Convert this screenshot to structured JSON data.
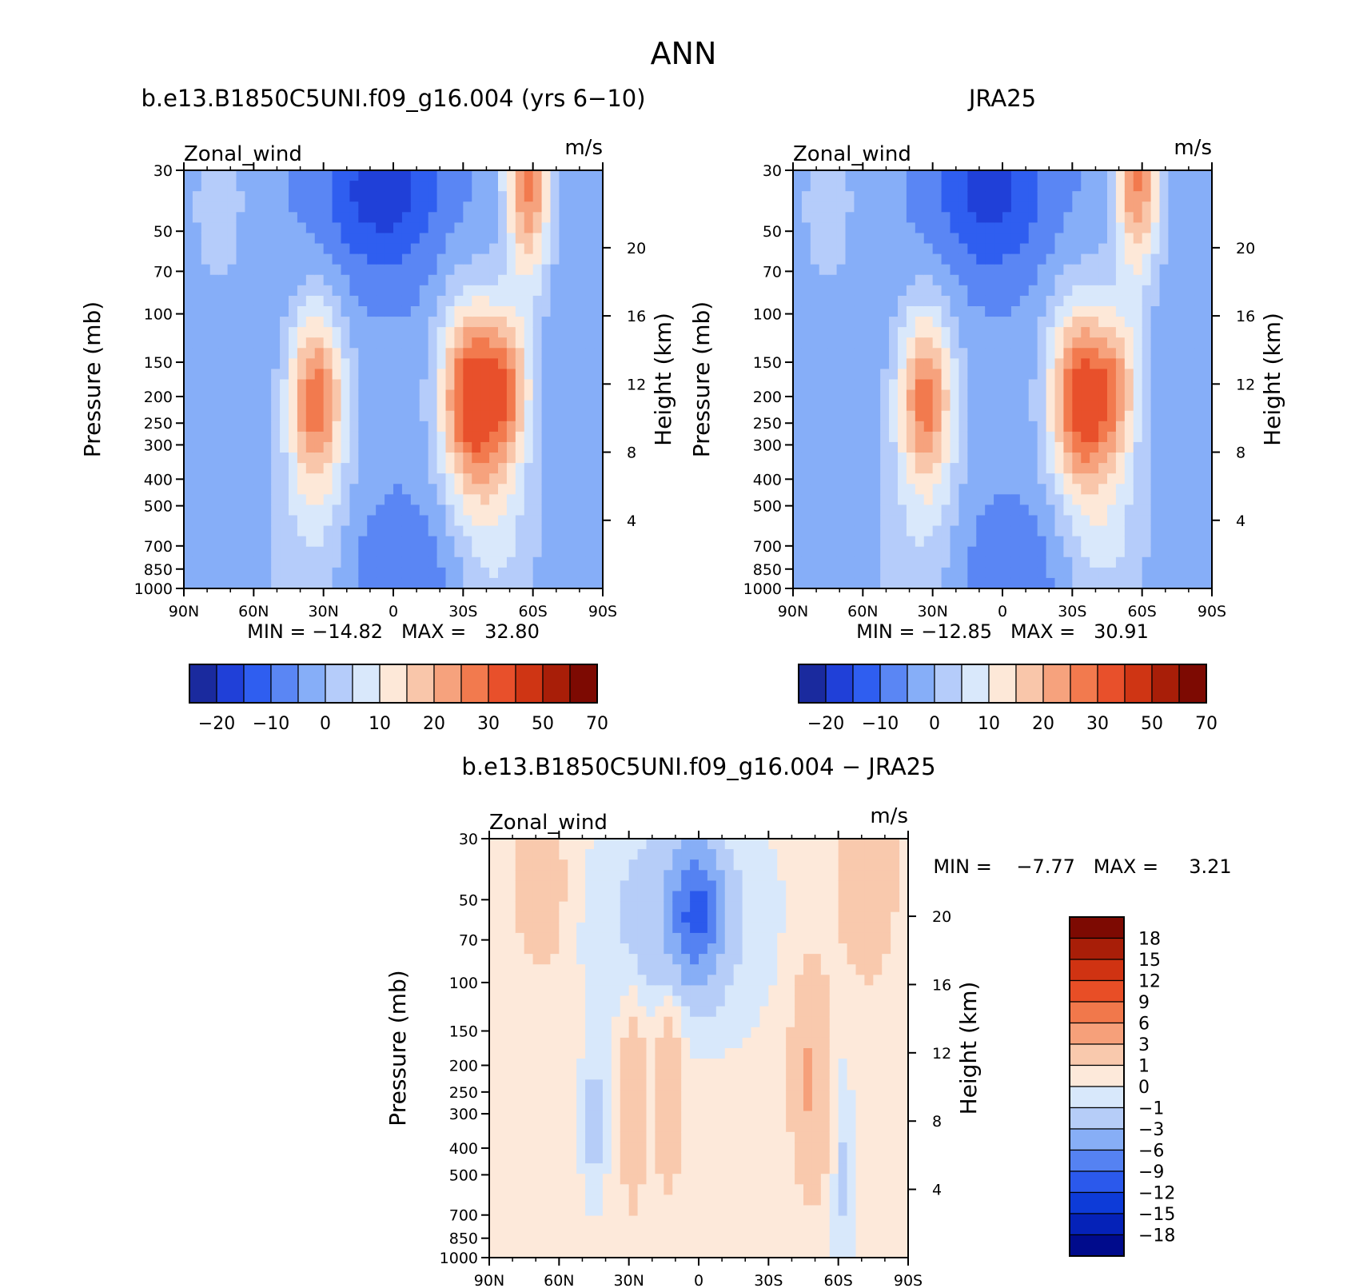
{
  "figure": {
    "title": "ANN"
  },
  "colors": {
    "abs_fill": [
      "#1a2a9e",
      "#2040d8",
      "#2f5ef0",
      "#5a86f4",
      "#86aef8",
      "#b5ccfa",
      "#d9e8fb",
      "#fde8d8",
      "#f9c6aa",
      "#f6a27d",
      "#f27a4e",
      "#e8502b",
      "#cf3514",
      "#a81e08",
      "#7d0a02"
    ],
    "diff_fill": [
      "#000b8c",
      "#0522b8",
      "#0d3bd8",
      "#2b59ec",
      "#5582f2",
      "#87aef6",
      "#b6cdf8",
      "#d8e8fb",
      "#fde9da",
      "#f9c9ad",
      "#f6a07a",
      "#f1784b",
      "#e84e26",
      "#d03312",
      "#a81e08",
      "#7d0a02"
    ]
  },
  "panels": [
    {
      "id": "model",
      "title": "b.e13.B1850C5UNI.f09_g16.004 (yrs 6−10)",
      "left_label": "Zonal_wind",
      "right_label": "m/s",
      "ylabel": "Pressure (mb)",
      "ylabel2": "Height (km)",
      "stats": "MIN = −14.82   MAX =   32.80"
    },
    {
      "id": "obs",
      "title": "JRA25",
      "left_label": "Zonal_wind",
      "right_label": "m/s",
      "ylabel": "Pressure (mb)",
      "ylabel2": "Height (km)",
      "stats": "MIN = −12.85   MAX =   30.91"
    },
    {
      "id": "diff",
      "title": "b.e13.B1850C5UNI.f09_g16.004 − JRA25",
      "left_label": "Zonal_wind",
      "right_label": "m/s",
      "ylabel": "Pressure (mb)",
      "ylabel2": "Height (km)",
      "stats": "MIN =    −7.77   MAX =     3.21"
    }
  ],
  "colorbars": {
    "abs_labels": [
      "−20",
      "−10",
      "0",
      "10",
      "20",
      "30",
      "50",
      "70"
    ],
    "diff_labels": [
      "18",
      "15",
      "12",
      "9",
      "6",
      "3",
      "1",
      "0",
      "−1",
      "−3",
      "−6",
      "−9",
      "−12",
      "−15",
      "−18"
    ]
  },
  "chart_data": [
    {
      "type": "heatmap",
      "title": "b.e13.B1850C5UNI.f09_g16.004 (yrs 6−10)",
      "variable": "Zonal_wind",
      "units": "m/s",
      "xlabel": "",
      "ylabel": "Pressure (mb)",
      "ylabel_right": "Height (km)",
      "x_ticks": [
        "90N",
        "60N",
        "30N",
        "0",
        "30S",
        "60S",
        "90S"
      ],
      "y_ticks": [
        30,
        50,
        70,
        100,
        150,
        200,
        250,
        300,
        400,
        500,
        700,
        850,
        1000
      ],
      "y2_ticks": [
        4,
        8,
        12,
        16,
        20
      ],
      "y_scale": "log",
      "ylim": [
        1000,
        30
      ],
      "xlim": [
        90,
        -90
      ],
      "contour_levels": [
        -25,
        -20,
        -15,
        -10,
        -5,
        0,
        5,
        10,
        15,
        20,
        25,
        30,
        40,
        50,
        60,
        70
      ],
      "min": -14.82,
      "max": 32.8,
      "features": [
        {
          "lat": 32,
          "p": 200,
          "u": 26,
          "kind": "NH subtropical jet"
        },
        {
          "lat": -32,
          "p": 200,
          "u": 31,
          "kind": "SH subtropical jet"
        },
        {
          "lat": -48,
          "p": 200,
          "u": 31,
          "kind": "SH jet secondary core"
        },
        {
          "lat": -60,
          "p": 35,
          "u": 28,
          "kind": "SH stratospheric jet"
        },
        {
          "lat": 10,
          "p": 35,
          "u": -14,
          "kind": "tropical easterlies"
        }
      ]
    },
    {
      "type": "heatmap",
      "title": "JRA25",
      "variable": "Zonal_wind",
      "units": "m/s",
      "xlabel": "",
      "ylabel": "Pressure (mb)",
      "ylabel_right": "Height (km)",
      "x_ticks": [
        "90N",
        "60N",
        "30N",
        "0",
        "30S",
        "60S",
        "90S"
      ],
      "y_ticks": [
        30,
        50,
        70,
        100,
        150,
        200,
        250,
        300,
        400,
        500,
        700,
        850,
        1000
      ],
      "y2_ticks": [
        4,
        8,
        12,
        16,
        20
      ],
      "y_scale": "log",
      "ylim": [
        1000,
        30
      ],
      "xlim": [
        90,
        -90
      ],
      "contour_levels": [
        -25,
        -20,
        -15,
        -10,
        -5,
        0,
        5,
        10,
        15,
        20,
        25,
        30,
        40,
        50,
        60,
        70
      ],
      "min": -12.85,
      "max": 30.91,
      "features": [
        {
          "lat": 32,
          "p": 200,
          "u": 26,
          "kind": "NH subtropical jet"
        },
        {
          "lat": -30,
          "p": 200,
          "u": 30,
          "kind": "SH subtropical jet"
        },
        {
          "lat": -60,
          "p": 32,
          "u": 26,
          "kind": "SH stratospheric jet"
        },
        {
          "lat": 8,
          "p": 32,
          "u": -13,
          "kind": "tropical easterlies"
        }
      ]
    },
    {
      "type": "heatmap",
      "title": "b.e13.B1850C5UNI.f09_g16.004 − JRA25",
      "variable": "Zonal_wind",
      "units": "m/s",
      "xlabel": "",
      "ylabel": "Pressure (mb)",
      "ylabel_right": "Height (km)",
      "x_ticks": [
        "90N",
        "60N",
        "30N",
        "0",
        "30S",
        "60S",
        "90S"
      ],
      "y_ticks": [
        30,
        50,
        70,
        100,
        150,
        200,
        250,
        300,
        400,
        500,
        700,
        850,
        1000
      ],
      "y2_ticks": [
        4,
        8,
        12,
        16,
        20
      ],
      "y_scale": "log",
      "ylim": [
        1000,
        30
      ],
      "xlim": [
        90,
        -90
      ],
      "contour_levels": [
        -18,
        -15,
        -12,
        -9,
        -6,
        -3,
        -1,
        0,
        1,
        3,
        6,
        9,
        12,
        15,
        18
      ],
      "min": -7.77,
      "max": 3.21,
      "features": [
        {
          "lat": 0,
          "p": 55,
          "u": -7.5,
          "kind": "negative difference"
        },
        {
          "lat": -45,
          "p": 200,
          "u": 2.5,
          "kind": "positive difference"
        },
        {
          "lat": 13,
          "p": 220,
          "u": 2,
          "kind": "positive difference"
        },
        {
          "lat": 68,
          "p": 45,
          "u": 2,
          "kind": "positive difference"
        },
        {
          "lat": -70,
          "p": 40,
          "u": 2,
          "kind": "positive difference"
        }
      ]
    }
  ]
}
